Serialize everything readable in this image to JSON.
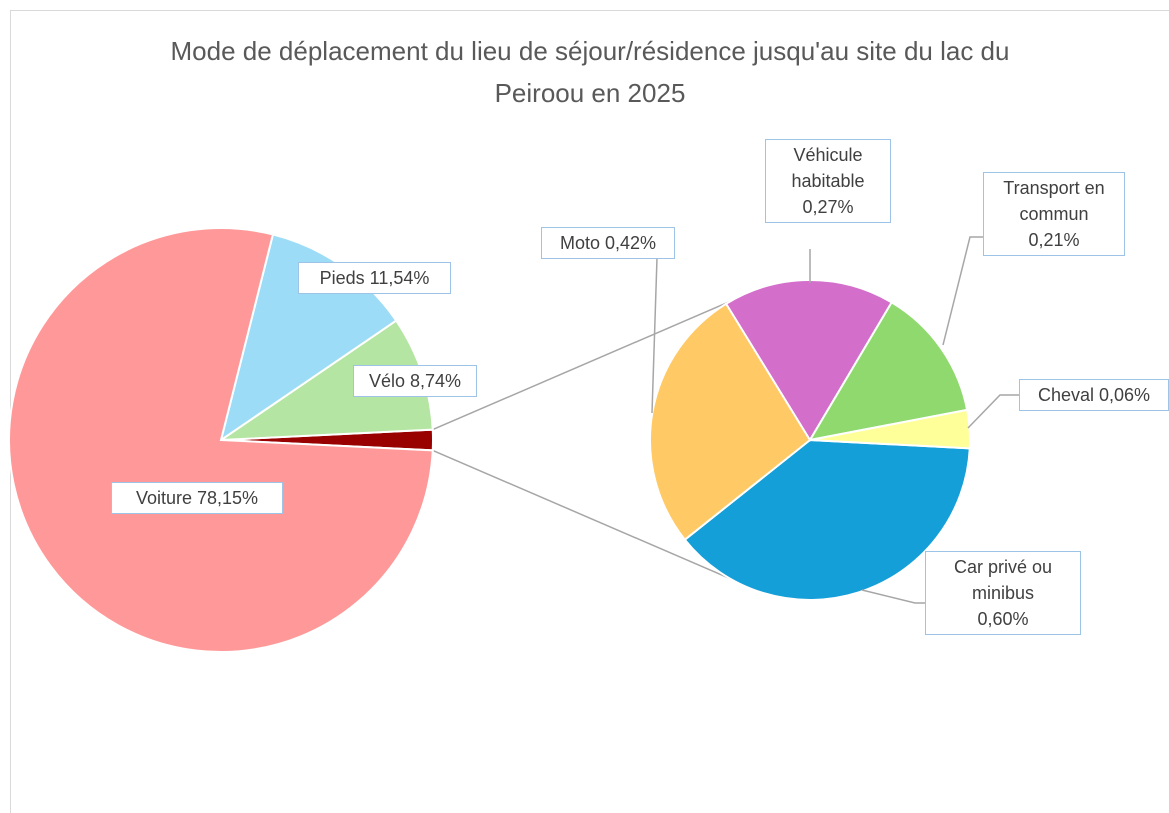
{
  "chart_data": {
    "type": "pie-of-pie",
    "title": "Mode de déplacement du lieu de séjour/résidence jusqu'au site du lac du Peiroou en 2025",
    "primary": {
      "categories": [
        "Voiture",
        "Pieds",
        "Vélo"
      ],
      "values": [
        78.15,
        11.54,
        8.74
      ],
      "value_labels": [
        "78,15%",
        "11,54%",
        "8,74%"
      ],
      "colors": [
        "#ff9999",
        "#9ddcf7",
        "#b5e5a3"
      ]
    },
    "other_color": "#990000",
    "secondary": {
      "categories": [
        "Car privé ou minibus",
        "Moto",
        "Véhicule habitable",
        "Transport en commun",
        "Cheval"
      ],
      "values": [
        0.6,
        0.42,
        0.27,
        0.21,
        0.06
      ],
      "value_labels": [
        "0,60%",
        "0,42%",
        "0,27%",
        "0,21%",
        "0,06%"
      ],
      "colors": [
        "#159fd8",
        "#ffc966",
        "#d36ecb",
        "#8fd96f",
        "#ffff99"
      ]
    }
  }
}
